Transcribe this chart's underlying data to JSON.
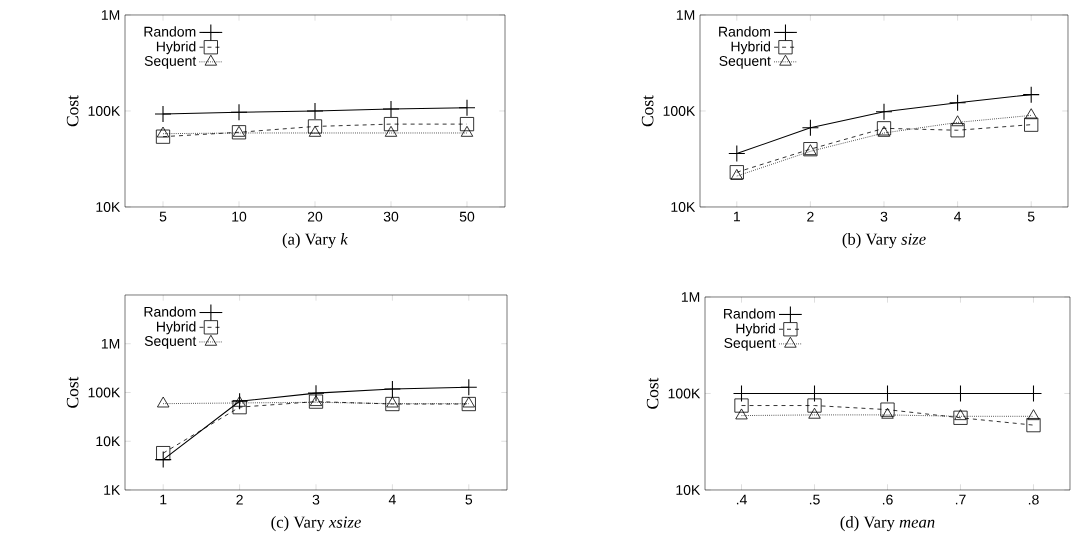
{
  "chart_data": [
    {
      "type": "line",
      "title": "(a) Vary *k*",
      "ylabel": "Cost",
      "categories": [
        "5",
        "10",
        "20",
        "30",
        "50"
      ],
      "log": "y",
      "legend": "top left",
      "ylim": [
        10000,
        1000000
      ],
      "yticks": [
        {
          "value": 10000,
          "label": "10K"
        },
        {
          "value": 100000,
          "label": "100K"
        },
        {
          "value": 1000000,
          "label": "1M"
        }
      ],
      "series": [
        {
          "name": "Random",
          "color": "#000000",
          "marker": "cross",
          "line_style": "solid",
          "values": [
            93000,
            97000,
            100000,
            105000,
            108000
          ]
        },
        {
          "name": "Hybrid",
          "color": "#000000",
          "marker": "square",
          "line_style": "dashed",
          "values": [
            54000,
            60000,
            69000,
            73000,
            73000
          ]
        },
        {
          "name": "Sequent",
          "color": "#000000",
          "marker": "triangle",
          "line_style": "dotted",
          "values": [
            58000,
            59000,
            59000,
            59000,
            59000
          ]
        }
      ]
    },
    {
      "type": "line",
      "title": "(b) Vary *size*",
      "ylabel": "Cost",
      "categories": [
        "1",
        "2",
        "3",
        "4",
        "5"
      ],
      "log": "y",
      "legend": "top left",
      "ylim": [
        10000,
        1000000
      ],
      "yticks": [
        {
          "value": 10000,
          "label": "10K"
        },
        {
          "value": 100000,
          "label": "100K"
        },
        {
          "value": 1000000,
          "label": "1M"
        }
      ],
      "series": [
        {
          "name": "Random",
          "color": "#000000",
          "marker": "cross",
          "line_style": "solid",
          "values": [
            36000,
            67000,
            98000,
            122000,
            148000
          ]
        },
        {
          "name": "Hybrid",
          "color": "#000000",
          "marker": "square",
          "line_style": "dashed",
          "values": [
            23000,
            40000,
            66000,
            63000,
            72000
          ]
        },
        {
          "name": "Sequent",
          "color": "#000000",
          "marker": "triangle",
          "line_style": "dotted",
          "values": [
            21000,
            38000,
            59000,
            76000,
            90000
          ]
        }
      ]
    },
    {
      "type": "line",
      "title": "(c) Vary *xsize*",
      "ylabel": "Cost",
      "categories": [
        "1",
        "2",
        "3",
        "4",
        "5"
      ],
      "log": "y",
      "legend": "top left",
      "ylim": [
        1000,
        10000000
      ],
      "yticks": [
        {
          "value": 1000,
          "label": "1K"
        },
        {
          "value": 10000,
          "label": "10K"
        },
        {
          "value": 100000,
          "label": "100K"
        },
        {
          "value": 1000000,
          "label": "1M"
        }
      ],
      "series": [
        {
          "name": "Random",
          "color": "#000000",
          "marker": "cross",
          "line_style": "solid",
          "values": [
            4200,
            66000,
            97000,
            118000,
            128000
          ]
        },
        {
          "name": "Hybrid",
          "color": "#000000",
          "marker": "square",
          "line_style": "dashed",
          "values": [
            5700,
            50000,
            65000,
            58000,
            58000
          ]
        },
        {
          "name": "Sequent",
          "color": "#000000",
          "marker": "triangle",
          "line_style": "dotted",
          "values": [
            59000,
            61000,
            63000,
            59000,
            59000
          ]
        }
      ]
    },
    {
      "type": "line",
      "title": "(d) Vary *mean*",
      "ylabel": "Cost",
      "categories": [
        ".4",
        ".5",
        ".6",
        ".7",
        ".8"
      ],
      "log": "y",
      "legend": "top left",
      "ylim": [
        10000,
        1000000
      ],
      "yticks": [
        {
          "value": 10000,
          "label": "10K"
        },
        {
          "value": 100000,
          "label": "100K"
        },
        {
          "value": 1000000,
          "label": "1M"
        }
      ],
      "series": [
        {
          "name": "Random",
          "color": "#000000",
          "marker": "cross",
          "line_style": "solid",
          "values": [
            100000,
            100000,
            100000,
            100000,
            100000
          ]
        },
        {
          "name": "Hybrid",
          "color": "#000000",
          "marker": "square",
          "line_style": "dashed",
          "values": [
            75000,
            75000,
            68000,
            56000,
            47000
          ]
        },
        {
          "name": "Sequent",
          "color": "#000000",
          "marker": "triangle",
          "line_style": "dotted",
          "values": [
            59000,
            60000,
            60000,
            58000,
            58000
          ]
        }
      ]
    }
  ]
}
